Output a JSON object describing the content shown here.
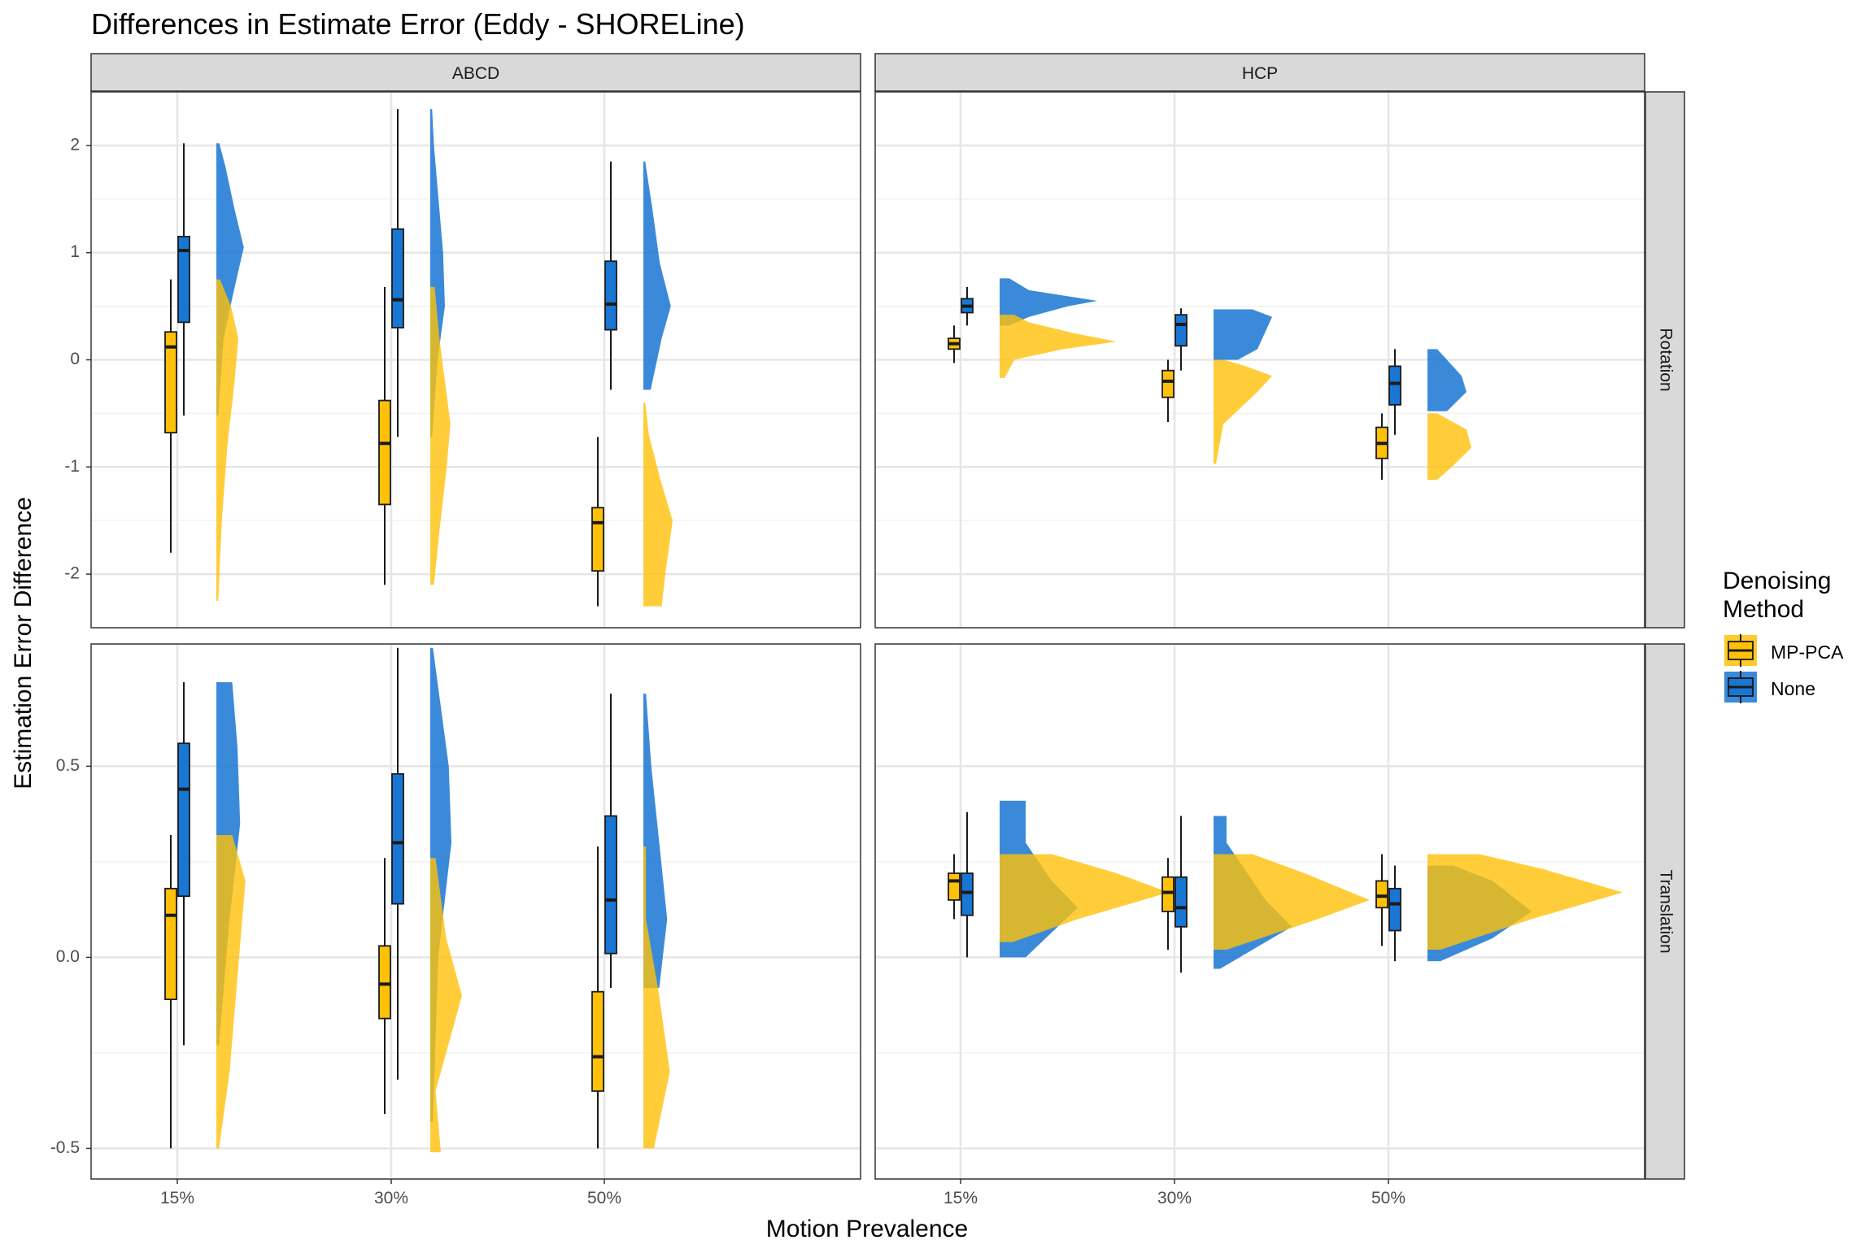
{
  "title": "Differences in Estimate Error (Eddy - SHORELine)",
  "xlabel": "Motion Prevalence",
  "ylabel": "Estimation Error Difference",
  "legend": {
    "title_line1": "Denoising",
    "title_line2": "Method",
    "items": [
      {
        "label": "MP-PCA",
        "color": "#FFC107"
      },
      {
        "label": "None",
        "color": "#1976D2"
      }
    ]
  },
  "chart_data": {
    "type": "raincloud (boxplot + half-violin)",
    "facet_cols": [
      "ABCD",
      "HCP"
    ],
    "facet_rows": [
      "Rotation",
      "Translation"
    ],
    "categories": [
      "15%",
      "30%",
      "50%"
    ],
    "series_colors": {
      "MP-PCA": "#FFC107",
      "None": "#1976D2"
    },
    "grid": true,
    "legend_position": "right",
    "rows": {
      "Rotation": {
        "ylim": [
          -2.5,
          2.5
        ],
        "ticks": [
          {
            "v": 2,
            "label": "2"
          },
          {
            "v": 1,
            "label": "1"
          },
          {
            "v": 0,
            "label": "0"
          },
          {
            "v": -1,
            "label": "-1"
          },
          {
            "v": -2,
            "label": "-2"
          }
        ],
        "minor": [
          1.5,
          0.5,
          -0.5,
          -1.5
        ]
      },
      "Translation": {
        "ylim": [
          -0.58,
          0.82
        ],
        "ticks": [
          {
            "v": 0.5,
            "label": "0.5"
          },
          {
            "v": 0.0,
            "label": "0.0"
          },
          {
            "v": -0.5,
            "label": "-0.5"
          }
        ],
        "minor": [
          0.25,
          -0.25
        ]
      }
    },
    "panels": [
      {
        "col": "ABCD",
        "row": "Rotation",
        "groups": [
          {
            "category": "15%",
            "mppca": {
              "min": -1.8,
              "q1": -0.68,
              "median": 0.12,
              "q3": 0.26,
              "max": 0.75,
              "density": [
                [
                  -2.25,
                  0.05
                ],
                [
                  -1.5,
                  0.15
                ],
                [
                  -0.8,
                  0.3
                ],
                [
                  -0.2,
                  0.5
                ],
                [
                  0.2,
                  0.6
                ],
                [
                  0.5,
                  0.4
                ],
                [
                  0.75,
                  0.1
                ]
              ]
            },
            "none": {
              "min": -0.52,
              "q1": 0.35,
              "median": 1.02,
              "q3": 1.15,
              "max": 2.02,
              "density": [
                [
                  -0.52,
                  0.05
                ],
                [
                  0.2,
                  0.2
                ],
                [
                  0.6,
                  0.45
                ],
                [
                  1.05,
                  0.75
                ],
                [
                  1.4,
                  0.5
                ],
                [
                  1.8,
                  0.25
                ],
                [
                  2.02,
                  0.08
                ]
              ]
            }
          },
          {
            "category": "30%",
            "mppca": {
              "min": -2.1,
              "q1": -1.35,
              "median": -0.78,
              "q3": -0.38,
              "max": 0.68,
              "density": [
                [
                  -2.1,
                  0.1
                ],
                [
                  -1.6,
                  0.25
                ],
                [
                  -1.0,
                  0.45
                ],
                [
                  -0.6,
                  0.55
                ],
                [
                  -0.2,
                  0.4
                ],
                [
                  0.2,
                  0.25
                ],
                [
                  0.68,
                  0.12
                ]
              ]
            },
            "none": {
              "min": -0.72,
              "q1": 0.3,
              "median": 0.56,
              "q3": 1.22,
              "max": 2.34,
              "density": [
                [
                  -0.72,
                  0.05
                ],
                [
                  0.0,
                  0.2
                ],
                [
                  0.5,
                  0.4
                ],
                [
                  1.0,
                  0.35
                ],
                [
                  1.6,
                  0.2
                ],
                [
                  2.0,
                  0.1
                ],
                [
                  2.34,
                  0.05
                ]
              ]
            }
          },
          {
            "category": "50%",
            "mppca": {
              "min": -2.3,
              "q1": -1.97,
              "median": -1.52,
              "q3": -1.38,
              "max": -0.72,
              "density": [
                [
                  -2.3,
                  0.5
                ],
                [
                  -2.0,
                  0.6
                ],
                [
                  -1.5,
                  0.8
                ],
                [
                  -1.1,
                  0.45
                ],
                [
                  -0.7,
                  0.15
                ],
                [
                  -0.4,
                  0.05
                ]
              ]
            },
            "none": {
              "min": -0.28,
              "q1": 0.28,
              "median": 0.52,
              "q3": 0.92,
              "max": 1.85,
              "density": [
                [
                  -0.28,
                  0.2
                ],
                [
                  0.2,
                  0.5
                ],
                [
                  0.5,
                  0.75
                ],
                [
                  0.9,
                  0.45
                ],
                [
                  1.4,
                  0.25
                ],
                [
                  1.85,
                  0.05
                ]
              ]
            }
          }
        ]
      },
      {
        "col": "HCP",
        "row": "Rotation",
        "groups": [
          {
            "category": "15%",
            "mppca": {
              "min": -0.03,
              "q1": 0.1,
              "median": 0.15,
              "q3": 0.2,
              "max": 0.32,
              "density": [
                [
                  -0.17,
                  0.1
                ],
                [
                  0.0,
                  0.3
                ],
                [
                  0.1,
                  1.3
                ],
                [
                  0.17,
                  2.4
                ],
                [
                  0.25,
                  1.5
                ],
                [
                  0.35,
                  0.6
                ],
                [
                  0.42,
                  0.3
                ]
              ]
            },
            "none": {
              "min": 0.32,
              "q1": 0.44,
              "median": 0.5,
              "q3": 0.57,
              "max": 0.68,
              "density": [
                [
                  0.32,
                  0.2
                ],
                [
                  0.4,
                  0.6
                ],
                [
                  0.5,
                  1.4
                ],
                [
                  0.55,
                  2.0
                ],
                [
                  0.65,
                  0.6
                ],
                [
                  0.76,
                  0.2
                ]
              ]
            }
          },
          {
            "category": "30%",
            "mppca": {
              "min": -0.58,
              "q1": -0.35,
              "median": -0.2,
              "q3": -0.1,
              "max": 0.0,
              "density": [
                [
                  -0.97,
                  0.05
                ],
                [
                  -0.6,
                  0.2
                ],
                [
                  -0.3,
                  0.9
                ],
                [
                  -0.15,
                  1.2
                ],
                [
                  -0.05,
                  0.6
                ],
                [
                  0.0,
                  0.2
                ]
              ]
            },
            "none": {
              "min": -0.1,
              "q1": 0.13,
              "median": 0.33,
              "q3": 0.42,
              "max": 0.48,
              "density": [
                [
                  0.0,
                  0.5
                ],
                [
                  0.1,
                  0.9
                ],
                [
                  0.3,
                  1.1
                ],
                [
                  0.4,
                  1.2
                ],
                [
                  0.47,
                  0.8
                ]
              ]
            }
          },
          {
            "category": "50%",
            "mppca": {
              "min": -1.12,
              "q1": -0.92,
              "median": -0.78,
              "q3": -0.63,
              "max": -0.5,
              "density": [
                [
                  -1.12,
                  0.2
                ],
                [
                  -1.0,
                  0.5
                ],
                [
                  -0.82,
                  0.9
                ],
                [
                  -0.65,
                  0.8
                ],
                [
                  -0.5,
                  0.2
                ]
              ]
            },
            "none": {
              "min": -0.7,
              "q1": -0.42,
              "median": -0.22,
              "q3": -0.06,
              "max": 0.1,
              "density": [
                [
                  -0.48,
                  0.4
                ],
                [
                  -0.3,
                  0.8
                ],
                [
                  -0.15,
                  0.7
                ],
                [
                  0.0,
                  0.4
                ],
                [
                  0.1,
                  0.2
                ]
              ]
            }
          }
        ]
      },
      {
        "col": "ABCD",
        "row": "Translation",
        "groups": [
          {
            "category": "15%",
            "mppca": {
              "min": -0.5,
              "q1": -0.11,
              "median": 0.11,
              "q3": 0.18,
              "max": 0.32,
              "density": [
                [
                  -0.5,
                  0.05
                ],
                [
                  -0.3,
                  0.25
                ],
                [
                  -0.05,
                  0.4
                ],
                [
                  0.2,
                  0.55
                ],
                [
                  0.32,
                  0.3
                ]
              ]
            },
            "none": {
              "min": -0.23,
              "q1": 0.16,
              "median": 0.44,
              "q3": 0.56,
              "max": 0.72,
              "density": [
                [
                  -0.23,
                  0.05
                ],
                [
                  0.1,
                  0.25
                ],
                [
                  0.35,
                  0.45
                ],
                [
                  0.55,
                  0.4
                ],
                [
                  0.72,
                  0.3
                ]
              ]
            }
          },
          {
            "category": "30%",
            "mppca": {
              "min": -0.41,
              "q1": -0.16,
              "median": -0.07,
              "q3": 0.03,
              "max": 0.26,
              "density": [
                [
                  -0.51,
                  0.2
                ],
                [
                  -0.35,
                  0.1
                ],
                [
                  -0.1,
                  0.6
                ],
                [
                  0.05,
                  0.3
                ],
                [
                  0.26,
                  0.1
                ]
              ]
            },
            "none": {
              "min": -0.32,
              "q1": 0.14,
              "median": 0.3,
              "q3": 0.48,
              "max": 0.81,
              "density": [
                [
                  -0.43,
                  0.05
                ],
                [
                  0.0,
                  0.15
                ],
                [
                  0.3,
                  0.4
                ],
                [
                  0.5,
                  0.35
                ],
                [
                  0.81,
                  0.05
                ]
              ]
            }
          },
          {
            "category": "50%",
            "mppca": {
              "min": -0.5,
              "q1": -0.35,
              "median": -0.26,
              "q3": -0.09,
              "max": 0.29,
              "density": [
                [
                  -0.5,
                  0.2
                ],
                [
                  -0.3,
                  0.5
                ],
                [
                  -0.1,
                  0.3
                ],
                [
                  0.1,
                  0.05
                ],
                [
                  0.29,
                  0.05
                ]
              ]
            },
            "none": {
              "min": -0.08,
              "q1": 0.01,
              "median": 0.15,
              "q3": 0.37,
              "max": 0.69,
              "density": [
                [
                  -0.08,
                  0.3
                ],
                [
                  0.1,
                  0.45
                ],
                [
                  0.3,
                  0.3
                ],
                [
                  0.5,
                  0.15
                ],
                [
                  0.69,
                  0.05
                ]
              ]
            }
          }
        ]
      },
      {
        "col": "HCP",
        "row": "Translation",
        "groups": [
          {
            "category": "15%",
            "mppca": {
              "min": 0.1,
              "q1": 0.15,
              "median": 0.2,
              "q3": 0.22,
              "max": 0.27,
              "density": [
                [
                  0.04,
                  0.1
                ],
                [
                  0.1,
                  0.6
                ],
                [
                  0.17,
                  1.3
                ],
                [
                  0.22,
                  0.9
                ],
                [
                  0.27,
                  0.4
                ]
              ]
            },
            "none": {
              "min": 0.0,
              "q1": 0.11,
              "median": 0.17,
              "q3": 0.22,
              "max": 0.38,
              "density": [
                [
                  0.0,
                  0.2
                ],
                [
                  0.13,
                  0.6
                ],
                [
                  0.2,
                  0.4
                ],
                [
                  0.3,
                  0.2
                ],
                [
                  0.41,
                  0.2
                ]
              ]
            }
          },
          {
            "category": "30%",
            "mppca": {
              "min": 0.02,
              "q1": 0.12,
              "median": 0.17,
              "q3": 0.21,
              "max": 0.26,
              "density": [
                [
                  0.02,
                  0.1
                ],
                [
                  0.1,
                  0.8
                ],
                [
                  0.15,
                  1.2
                ],
                [
                  0.22,
                  0.7
                ],
                [
                  0.27,
                  0.3
                ]
              ]
            },
            "none": {
              "min": -0.04,
              "q1": 0.08,
              "median": 0.13,
              "q3": 0.21,
              "max": 0.37,
              "density": [
                [
                  -0.03,
                  0.05
                ],
                [
                  0.08,
                  0.6
                ],
                [
                  0.15,
                  0.4
                ],
                [
                  0.3,
                  0.1
                ],
                [
                  0.37,
                  0.1
                ]
              ]
            }
          },
          {
            "category": "50%",
            "mppca": {
              "min": 0.03,
              "q1": 0.13,
              "median": 0.16,
              "q3": 0.2,
              "max": 0.27,
              "density": [
                [
                  0.02,
                  0.1
                ],
                [
                  0.1,
                  0.8
                ],
                [
                  0.17,
                  1.5
                ],
                [
                  0.23,
                  0.9
                ],
                [
                  0.27,
                  0.4
                ]
              ]
            },
            "none": {
              "min": -0.01,
              "q1": 0.07,
              "median": 0.14,
              "q3": 0.18,
              "max": 0.24,
              "density": [
                [
                  -0.01,
                  0.1
                ],
                [
                  0.05,
                  0.5
                ],
                [
                  0.12,
                  0.8
                ],
                [
                  0.2,
                  0.5
                ],
                [
                  0.24,
                  0.2
                ]
              ]
            }
          }
        ]
      }
    ]
  }
}
